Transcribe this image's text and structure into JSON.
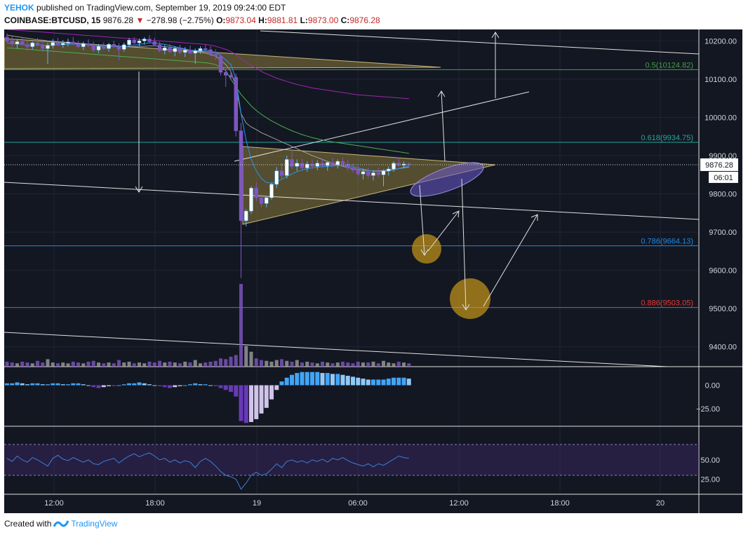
{
  "header": {
    "author": "YEHOK",
    "published_text": "published on TradingView.com, September 19, 2019 09:24:00 EDT",
    "symbol": "COINBASE:BTCUSD, 15",
    "last": "9876.28",
    "change_arrow": "▼",
    "change": "−278.98 (−2.75%)",
    "o_label": "O:",
    "o_val": "9873.04",
    "h_label": "H:",
    "h_val": "9881.81",
    "l_label": "L:",
    "l_val": "9873.00",
    "c_label": "C:",
    "c_val": "9876.28"
  },
  "footer": {
    "created_with": "Created with",
    "brand": "TradingView"
  },
  "colors": {
    "background": "#131722",
    "grid": "#1f2536",
    "bull": "#ffffff",
    "bear": "#7e57c2",
    "fib_05": "#43a047",
    "fib_0618": "#26a69a",
    "fib_0786": "#1e88e5",
    "fib_0886": "#e53935",
    "triangle_fill": "#8a7a3a",
    "circle_fill": "#d4a017"
  },
  "chart_data": {
    "type": "candlestick",
    "price_axis": {
      "ylim": [
        9350,
        10230
      ],
      "ticks": [
        10200,
        10100,
        10000,
        9900,
        9800,
        9700,
        9600,
        9500,
        9400
      ],
      "tick_labels": [
        "10200.00",
        "10100.00",
        "10000.00",
        "9900.00",
        "9800.00",
        "9700.00",
        "9600.00",
        "9500.00",
        "9400.00"
      ]
    },
    "time_axis": {
      "ticks": [
        "12:00",
        "18:00",
        "19",
        "06:00",
        "12:00",
        "18:00",
        "20"
      ]
    },
    "last_price_label": "9876.28",
    "countdown_label": "06:01",
    "fib_levels": [
      {
        "ratio": "0.5",
        "price": 10124.82,
        "label": "0.5(10124.82)"
      },
      {
        "ratio": "0.618",
        "price": 9934.75,
        "label": "0.618(9934.75)"
      },
      {
        "ratio": "0.786",
        "price": 9664.13,
        "label": "0.786(9664.13)"
      },
      {
        "ratio": "0.886",
        "price": 9503.05,
        "label": "0.886(9503.05)"
      }
    ],
    "candles": [
      {
        "o": 10210,
        "h": 10220,
        "l": 10195,
        "c": 10200
      },
      {
        "o": 10200,
        "h": 10212,
        "l": 10185,
        "c": 10192
      },
      {
        "o": 10192,
        "h": 10205,
        "l": 10180,
        "c": 10198
      },
      {
        "o": 10198,
        "h": 10210,
        "l": 10188,
        "c": 10190
      },
      {
        "o": 10190,
        "h": 10200,
        "l": 10175,
        "c": 10185
      },
      {
        "o": 10185,
        "h": 10198,
        "l": 10178,
        "c": 10195
      },
      {
        "o": 10195,
        "h": 10208,
        "l": 10185,
        "c": 10188
      },
      {
        "o": 10188,
        "h": 10200,
        "l": 10172,
        "c": 10180
      },
      {
        "o": 10180,
        "h": 10195,
        "l": 10140,
        "c": 10188
      },
      {
        "o": 10188,
        "h": 10205,
        "l": 10180,
        "c": 10196
      },
      {
        "o": 10196,
        "h": 10208,
        "l": 10186,
        "c": 10190
      },
      {
        "o": 10190,
        "h": 10202,
        "l": 10182,
        "c": 10194
      },
      {
        "o": 10194,
        "h": 10206,
        "l": 10186,
        "c": 10197
      },
      {
        "o": 10197,
        "h": 10210,
        "l": 10188,
        "c": 10192
      },
      {
        "o": 10192,
        "h": 10200,
        "l": 10182,
        "c": 10185
      },
      {
        "o": 10185,
        "h": 10198,
        "l": 10176,
        "c": 10193
      },
      {
        "o": 10193,
        "h": 10204,
        "l": 10184,
        "c": 10188
      },
      {
        "o": 10188,
        "h": 10198,
        "l": 10170,
        "c": 10176
      },
      {
        "o": 10176,
        "h": 10192,
        "l": 10168,
        "c": 10186
      },
      {
        "o": 10186,
        "h": 10196,
        "l": 10176,
        "c": 10180
      },
      {
        "o": 10180,
        "h": 10195,
        "l": 10172,
        "c": 10191
      },
      {
        "o": 10191,
        "h": 10200,
        "l": 10182,
        "c": 10185
      },
      {
        "o": 10185,
        "h": 10194,
        "l": 10150,
        "c": 10178
      },
      {
        "o": 10178,
        "h": 10196,
        "l": 10172,
        "c": 10190
      },
      {
        "o": 10190,
        "h": 10208,
        "l": 10184,
        "c": 10202
      },
      {
        "o": 10202,
        "h": 10210,
        "l": 10190,
        "c": 10195
      },
      {
        "o": 10195,
        "h": 10206,
        "l": 10186,
        "c": 10200
      },
      {
        "o": 10200,
        "h": 10210,
        "l": 10190,
        "c": 10205
      },
      {
        "o": 10205,
        "h": 10215,
        "l": 10194,
        "c": 10198
      },
      {
        "o": 10198,
        "h": 10208,
        "l": 10186,
        "c": 10190
      },
      {
        "o": 10190,
        "h": 10198,
        "l": 10170,
        "c": 10175
      },
      {
        "o": 10175,
        "h": 10190,
        "l": 10165,
        "c": 10182
      },
      {
        "o": 10182,
        "h": 10192,
        "l": 10168,
        "c": 10172
      },
      {
        "o": 10172,
        "h": 10186,
        "l": 10160,
        "c": 10180
      },
      {
        "o": 10180,
        "h": 10190,
        "l": 10165,
        "c": 10170
      },
      {
        "o": 10170,
        "h": 10184,
        "l": 10158,
        "c": 10176
      },
      {
        "o": 10176,
        "h": 10188,
        "l": 10164,
        "c": 10168
      },
      {
        "o": 10168,
        "h": 10180,
        "l": 10140,
        "c": 10174
      },
      {
        "o": 10174,
        "h": 10186,
        "l": 10166,
        "c": 10180
      },
      {
        "o": 10180,
        "h": 10190,
        "l": 10170,
        "c": 10177
      },
      {
        "o": 10177,
        "h": 10186,
        "l": 10160,
        "c": 10165
      },
      {
        "o": 10165,
        "h": 10178,
        "l": 10150,
        "c": 10160
      },
      {
        "o": 10160,
        "h": 10170,
        "l": 10110,
        "c": 10118
      },
      {
        "o": 10118,
        "h": 10130,
        "l": 10080,
        "c": 10110
      },
      {
        "o": 10110,
        "h": 10122,
        "l": 10098,
        "c": 10105
      },
      {
        "o": 10105,
        "h": 10115,
        "l": 9950,
        "c": 9965
      },
      {
        "o": 9965,
        "h": 9985,
        "l": 9580,
        "c": 9730
      },
      {
        "o": 9730,
        "h": 9760,
        "l": 9715,
        "c": 9755
      },
      {
        "o": 9755,
        "h": 9820,
        "l": 9748,
        "c": 9815
      },
      {
        "o": 9815,
        "h": 9830,
        "l": 9780,
        "c": 9790
      },
      {
        "o": 9790,
        "h": 9800,
        "l": 9765,
        "c": 9775
      },
      {
        "o": 9775,
        "h": 9795,
        "l": 9765,
        "c": 9790
      },
      {
        "o": 9790,
        "h": 9830,
        "l": 9785,
        "c": 9825
      },
      {
        "o": 9825,
        "h": 9870,
        "l": 9815,
        "c": 9860
      },
      {
        "o": 9860,
        "h": 9880,
        "l": 9840,
        "c": 9848
      },
      {
        "o": 9848,
        "h": 9900,
        "l": 9840,
        "c": 9890
      },
      {
        "o": 9890,
        "h": 9915,
        "l": 9865,
        "c": 9872
      },
      {
        "o": 9872,
        "h": 9890,
        "l": 9860,
        "c": 9880
      },
      {
        "o": 9880,
        "h": 9892,
        "l": 9862,
        "c": 9868
      },
      {
        "o": 9868,
        "h": 9885,
        "l": 9858,
        "c": 9878
      },
      {
        "o": 9878,
        "h": 9890,
        "l": 9866,
        "c": 9872
      },
      {
        "o": 9872,
        "h": 9888,
        "l": 9862,
        "c": 9880
      },
      {
        "o": 9880,
        "h": 9892,
        "l": 9868,
        "c": 9874
      },
      {
        "o": 9874,
        "h": 9885,
        "l": 9860,
        "c": 9882
      },
      {
        "o": 9882,
        "h": 9895,
        "l": 9870,
        "c": 9876
      },
      {
        "o": 9876,
        "h": 9890,
        "l": 9866,
        "c": 9885
      },
      {
        "o": 9885,
        "h": 9895,
        "l": 9872,
        "c": 9878
      },
      {
        "o": 9878,
        "h": 9890,
        "l": 9860,
        "c": 9868
      },
      {
        "o": 9868,
        "h": 9880,
        "l": 9855,
        "c": 9862
      },
      {
        "o": 9862,
        "h": 9875,
        "l": 9845,
        "c": 9852
      },
      {
        "o": 9852,
        "h": 9865,
        "l": 9838,
        "c": 9858
      },
      {
        "o": 9858,
        "h": 9868,
        "l": 9840,
        "c": 9848
      },
      {
        "o": 9848,
        "h": 9862,
        "l": 9835,
        "c": 9855
      },
      {
        "o": 9855,
        "h": 9868,
        "l": 9842,
        "c": 9850
      },
      {
        "o": 9850,
        "h": 9864,
        "l": 9820,
        "c": 9860
      },
      {
        "o": 9860,
        "h": 9872,
        "l": 9848,
        "c": 9865
      },
      {
        "o": 9865,
        "h": 9885,
        "l": 9858,
        "c": 9880
      },
      {
        "o": 9880,
        "h": 9895,
        "l": 9870,
        "c": 9875
      },
      {
        "o": 9875,
        "h": 9885,
        "l": 9868,
        "c": 9878
      },
      {
        "o": 9878,
        "h": 9882,
        "l": 9870,
        "c": 9876
      }
    ],
    "ma_fast": [
      10195,
      10193,
      10192,
      10191,
      10189,
      10189,
      10190,
      10189,
      10188,
      10189,
      10190,
      10190,
      10191,
      10192,
      10191,
      10190,
      10190,
      10188,
      10187,
      10186,
      10186,
      10186,
      10185,
      10185,
      10187,
      10189,
      10191,
      10193,
      10195,
      10195,
      10193,
      10191,
      10188,
      10185,
      10182,
      10179,
      10176,
      10175,
      10175,
      10175,
      10173,
      10170,
      10162,
      10150,
      10138,
      10100,
      10010,
      9940,
      9890,
      9860,
      9840,
      9830,
      9828,
      9832,
      9838,
      9846,
      9852,
      9858,
      9862,
      9866,
      9868,
      9870,
      9871,
      9872,
      9873,
      9874,
      9874,
      9873,
      9871,
      9868,
      9865,
      9862,
      9859,
      9858,
      9858,
      9860,
      9863,
      9866,
      9870,
      9872
    ],
    "ma_mid": [
      10215,
      10213,
      10211,
      10209,
      10207,
      10205,
      10203,
      10202,
      10200,
      10199,
      10198,
      10197,
      10196,
      10195,
      10194,
      10193,
      10192,
      10191,
      10190,
      10189,
      10188,
      10187,
      10186,
      10185,
      10185,
      10185,
      10186,
      10186,
      10187,
      10187,
      10186,
      10185,
      10184,
      10182,
      10180,
      10178,
      10175,
      10172,
      10170,
      10168,
      10164,
      10160,
      10150,
      10138,
      10120,
      10080,
      10010,
      9985,
      9975,
      9968,
      9960,
      9954,
      9948,
      9942,
      9936,
      9930,
      9924,
      9918,
      9912,
      9906,
      9900,
      9895,
      9890,
      9885,
      9880,
      9876,
      9872,
      9869,
      9866,
      9864,
      9862,
      9861,
      9860,
      9860,
      9861,
      9862,
      9864,
      9866,
      9868,
      9870
    ],
    "ma_green": [
      10182,
      10181,
      10180,
      10179,
      10178,
      10177,
      10176,
      10175,
      10174,
      10173,
      10172,
      10171,
      10170,
      10169,
      10168,
      10167,
      10166,
      10165,
      10164,
      10163,
      10162,
      10161,
      10160,
      10159,
      10158,
      10157,
      10156,
      10155,
      10154,
      10153,
      10152,
      10151,
      10150,
      10149,
      10148,
      10147,
      10146,
      10145,
      10144,
      10143,
      10141,
      10138,
      10132,
      10122,
      10100,
      10080,
      10060,
      10045,
      10030,
      10018,
      10008,
      9999,
      9991,
      9984,
      9977,
      9971,
      9965,
      9960,
      9955,
      9951,
      9947,
      9944,
      9941,
      9938,
      9936,
      9934,
      9932,
      9930,
      9928,
      9926,
      9924,
      9922,
      9920,
      9918,
      9916,
      9914,
      9912,
      9910,
      9908,
      9906
    ],
    "ma_purple": [
      10230,
      10229,
      10228,
      10227,
      10226,
      10225,
      10224,
      10223,
      10222,
      10221,
      10220,
      10219,
      10218,
      10217,
      10216,
      10215,
      10214,
      10213,
      10212,
      10211,
      10210,
      10209,
      10208,
      10207,
      10206,
      10205,
      10204,
      10203,
      10202,
      10201,
      10200,
      10199,
      10198,
      10197,
      10196,
      10195,
      10194,
      10193,
      10192,
      10191,
      10189,
      10186,
      10182,
      10178,
      10172,
      10164,
      10154,
      10144,
      10136,
      10128,
      10120,
      10114,
      10108,
      10103,
      10098,
      10094,
      10090,
      10086,
      10083,
      10080,
      10077,
      10075,
      10073,
      10071,
      10069,
      10067,
      10065,
      10063,
      10061,
      10059,
      10058,
      10057,
      10056,
      10055,
      10054,
      10053,
      10052,
      10051,
      10050,
      10049
    ],
    "volume": [
      6,
      5,
      4,
      6,
      5,
      4,
      7,
      5,
      9,
      5,
      4,
      5,
      4,
      6,
      5,
      4,
      6,
      7,
      5,
      4,
      5,
      4,
      8,
      5,
      6,
      4,
      5,
      4,
      6,
      5,
      7,
      5,
      6,
      5,
      4,
      6,
      5,
      8,
      4,
      5,
      6,
      7,
      10,
      9,
      12,
      14,
      100,
      25,
      18,
      10,
      8,
      7,
      6,
      8,
      9,
      7,
      6,
      8,
      5,
      6,
      5,
      4,
      6,
      5,
      4,
      5,
      6,
      5,
      4,
      6,
      5,
      5,
      6,
      4,
      7,
      5,
      4,
      6,
      5,
      4
    ],
    "macd_axis": {
      "ylim": [
        -42,
        16
      ],
      "ticks": [
        0,
        -25
      ],
      "tick_labels": [
        "0.00",
        "−25.00"
      ]
    },
    "macd": [
      2,
      2,
      3,
      2,
      1,
      2,
      2,
      1,
      1,
      2,
      2,
      1,
      1,
      2,
      2,
      1,
      0,
      -2,
      -3,
      -2,
      -1,
      -1,
      0,
      1,
      2,
      2,
      3,
      2,
      1,
      0,
      -1,
      -2,
      -3,
      -2,
      -1,
      0,
      1,
      2,
      1,
      1,
      0,
      -1,
      -3,
      -5,
      -7,
      -12,
      -38,
      -40,
      -39,
      -36,
      -30,
      -24,
      -15,
      -5,
      4,
      8,
      11,
      13,
      14,
      14,
      14,
      14,
      13,
      13,
      12,
      12,
      11,
      10,
      9,
      8,
      7,
      6,
      6,
      6,
      6,
      7,
      8,
      8,
      8,
      7
    ],
    "rsi_axis": {
      "ylim": [
        10,
        90
      ],
      "ticks": [
        50,
        25
      ],
      "tick_labels": [
        "50.00",
        "25.00"
      ],
      "band": [
        30,
        70
      ]
    },
    "rsi": [
      52,
      48,
      55,
      50,
      47,
      53,
      50,
      46,
      42,
      52,
      56,
      51,
      49,
      53,
      50,
      47,
      50,
      45,
      44,
      48,
      50,
      52,
      46,
      51,
      55,
      58,
      54,
      57,
      59,
      55,
      50,
      52,
      47,
      50,
      46,
      49,
      47,
      40,
      48,
      52,
      48,
      42,
      35,
      30,
      28,
      25,
      12,
      20,
      30,
      34,
      30,
      32,
      38,
      45,
      40,
      48,
      50,
      47,
      49,
      46,
      50,
      48,
      51,
      47,
      52,
      50,
      53,
      49,
      46,
      44,
      42,
      45,
      41,
      45,
      43,
      47,
      51,
      55,
      53,
      52
    ]
  }
}
